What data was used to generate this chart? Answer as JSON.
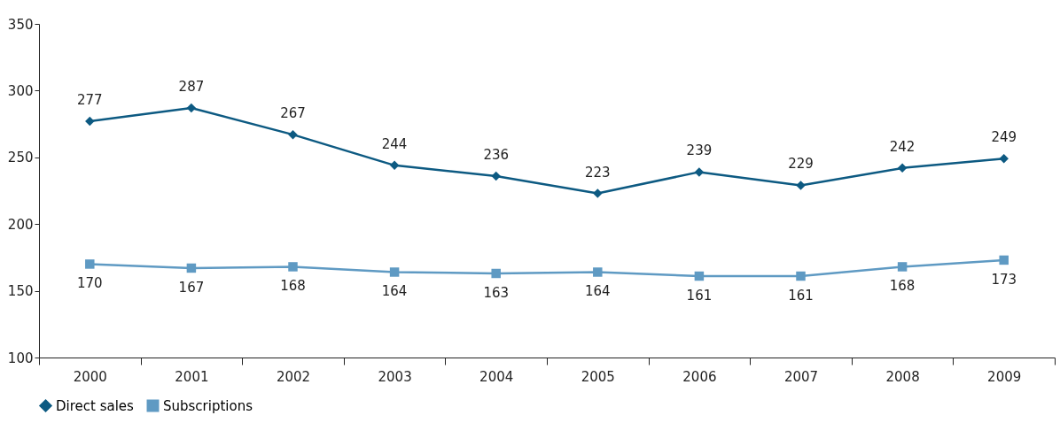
{
  "chart_data": {
    "type": "line",
    "categories": [
      "2000",
      "2001",
      "2002",
      "2003",
      "2004",
      "2005",
      "2006",
      "2007",
      "2008",
      "2009"
    ],
    "series": [
      {
        "name": "Direct sales",
        "color": "#0d5a82",
        "marker": "diamond",
        "values": [
          277,
          287,
          267,
          244,
          236,
          223,
          239,
          229,
          242,
          249
        ]
      },
      {
        "name": "Subscriptions",
        "color": "#5f9ac3",
        "marker": "square",
        "values": [
          170,
          167,
          168,
          164,
          163,
          164,
          161,
          161,
          168,
          173
        ]
      }
    ],
    "ylim": [
      100,
      350
    ],
    "yticks": [
      100,
      150,
      200,
      250,
      300,
      350
    ],
    "grid": false,
    "legend": "bottom",
    "data_labels": true
  }
}
